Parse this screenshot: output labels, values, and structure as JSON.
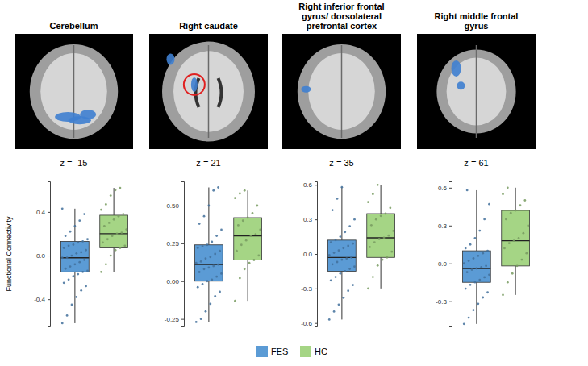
{
  "chart_data": [
    {
      "type": "box",
      "title": "Cerebellum",
      "subtitle": "z = -15",
      "y_label": "Functional Connectivity",
      "tick_labels": "y",
      "ylim": [
        -0.65,
        0.68
      ],
      "yticks": [
        -0.4,
        {
          "value": 0,
          "label": "0.0"
        },
        0.4
      ],
      "series": [
        {
          "name": "FES",
          "color": "#5b9bd5",
          "whisker_low": -0.62,
          "q1": -0.15,
          "median": -0.02,
          "q3": 0.13,
          "whisker_high": 0.43,
          "points": [
            -0.62,
            -0.55,
            -0.45,
            -0.38,
            -0.32,
            -0.28,
            -0.25,
            -0.22,
            -0.19,
            -0.17,
            -0.15,
            -0.14,
            -0.12,
            -0.1,
            -0.08,
            -0.06,
            -0.04,
            -0.02,
            -0.02,
            0.0,
            0.02,
            0.03,
            0.05,
            0.07,
            0.09,
            0.1,
            0.12,
            0.13,
            0.15,
            0.18,
            0.22,
            0.27,
            0.32,
            0.38,
            0.43
          ]
        },
        {
          "name": "HC",
          "color": "#a5d585",
          "whisker_low": -0.15,
          "q1": 0.07,
          "median": 0.2,
          "q3": 0.37,
          "whisker_high": 0.62,
          "points": [
            -0.15,
            -0.08,
            0.0,
            0.05,
            0.07,
            0.09,
            0.12,
            0.15,
            0.18,
            0.2,
            0.21,
            0.24,
            0.27,
            0.3,
            0.33,
            0.36,
            0.38,
            0.42,
            0.47,
            0.55,
            0.6,
            0.62
          ]
        }
      ]
    },
    {
      "type": "box",
      "title": "Right caudate",
      "subtitle": "z = 21",
      "tick_labels": "y",
      "ylim": [
        -0.3,
        0.66
      ],
      "yticks": [
        -0.25,
        {
          "value": 0,
          "label": "0.00"
        },
        0.25,
        {
          "value": 0.5,
          "label": "0.50"
        }
      ],
      "series": [
        {
          "name": "FES",
          "color": "#5b9bd5",
          "whisker_low": -0.27,
          "q1": 0.0,
          "median": 0.11,
          "q3": 0.24,
          "whisker_high": 0.62,
          "points": [
            -0.27,
            -0.25,
            -0.2,
            -0.15,
            -0.1,
            -0.07,
            -0.04,
            -0.02,
            0.0,
            0.01,
            0.03,
            0.05,
            0.06,
            0.08,
            0.09,
            0.1,
            0.11,
            0.12,
            0.13,
            0.15,
            0.16,
            0.18,
            0.2,
            0.22,
            0.23,
            0.24,
            0.26,
            0.3,
            0.34,
            0.38,
            0.43,
            0.5,
            0.6,
            0.62
          ]
        },
        {
          "name": "HC",
          "color": "#a5d585",
          "whisker_low": -0.13,
          "q1": 0.14,
          "median": 0.3,
          "q3": 0.42,
          "whisker_high": 0.6,
          "points": [
            -0.13,
            0.02,
            0.08,
            0.12,
            0.14,
            0.17,
            0.2,
            0.24,
            0.27,
            0.3,
            0.31,
            0.34,
            0.37,
            0.4,
            0.42,
            0.45,
            0.5,
            0.55,
            0.58,
            0.6
          ]
        }
      ]
    },
    {
      "type": "box",
      "title": "Right inferior frontal gyrus/ dorsolateral prefrontal cortex",
      "subtitle": "z = 35",
      "tick_labels": "y",
      "ylim": [
        -0.63,
        0.63
      ],
      "yticks": [
        -0.6,
        -0.3,
        {
          "value": 0,
          "label": "0.0"
        },
        0.3,
        0.6
      ],
      "series": [
        {
          "name": "FES",
          "color": "#5b9bd5",
          "whisker_low": -0.57,
          "q1": -0.15,
          "median": -0.03,
          "q3": 0.12,
          "whisker_high": 0.58,
          "points": [
            -0.57,
            -0.5,
            -0.44,
            -0.38,
            -0.32,
            -0.27,
            -0.23,
            -0.2,
            -0.17,
            -0.15,
            -0.13,
            -0.11,
            -0.09,
            -0.07,
            -0.05,
            -0.04,
            -0.03,
            -0.01,
            0.01,
            0.03,
            0.05,
            0.07,
            0.09,
            0.1,
            0.12,
            0.15,
            0.19,
            0.24,
            0.3,
            0.38,
            0.48,
            0.58
          ]
        },
        {
          "name": "HC",
          "color": "#a5d585",
          "whisker_low": -0.3,
          "q1": -0.03,
          "median": 0.14,
          "q3": 0.35,
          "whisker_high": 0.6,
          "points": [
            -0.3,
            -0.2,
            -0.1,
            -0.05,
            -0.03,
            0.02,
            0.06,
            0.1,
            0.13,
            0.14,
            0.16,
            0.2,
            0.25,
            0.3,
            0.33,
            0.35,
            0.4,
            0.45,
            0.52,
            0.6
          ]
        }
      ]
    },
    {
      "type": "box",
      "title": "Right middle frontal gyrus",
      "subtitle": "z = 61",
      "tick_labels": "y",
      "ylim": [
        -0.5,
        0.65
      ],
      "yticks": [
        -0.3,
        {
          "value": 0,
          "label": "0.0"
        },
        0.3,
        0.6
      ],
      "series": [
        {
          "name": "FES",
          "color": "#5b9bd5",
          "whisker_low": -0.48,
          "q1": -0.15,
          "median": -0.04,
          "q3": 0.1,
          "whisker_high": 0.58,
          "points": [
            -0.48,
            -0.43,
            -0.37,
            -0.32,
            -0.27,
            -0.23,
            -0.2,
            -0.17,
            -0.15,
            -0.13,
            -0.11,
            -0.09,
            -0.07,
            -0.05,
            -0.04,
            -0.03,
            -0.02,
            0.0,
            0.02,
            0.04,
            0.06,
            0.08,
            0.1,
            0.12,
            0.15,
            0.2,
            0.26,
            0.35,
            0.47,
            0.58
          ]
        },
        {
          "name": "HC",
          "color": "#a5d585",
          "whisker_low": -0.25,
          "q1": -0.02,
          "median": 0.18,
          "q3": 0.42,
          "whisker_high": 0.6,
          "points": [
            -0.25,
            -0.15,
            -0.08,
            -0.02,
            0.03,
            0.08,
            0.12,
            0.16,
            0.18,
            0.2,
            0.24,
            0.3,
            0.35,
            0.4,
            0.42,
            0.46,
            0.5,
            0.55,
            0.6
          ]
        }
      ]
    }
  ]
}
